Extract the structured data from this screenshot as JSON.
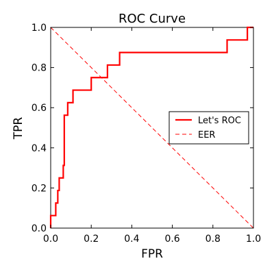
{
  "chart_data": {
    "type": "line",
    "title": "ROC Curve",
    "xlabel": "FPR",
    "ylabel": "TPR",
    "xlim": [
      0.0,
      1.0
    ],
    "ylim": [
      0.0,
      1.0
    ],
    "xticks": [
      "0.0",
      "0.2",
      "0.4",
      "0.6",
      "0.8",
      "1.0"
    ],
    "yticks": [
      "0.0",
      "0.2",
      "0.4",
      "0.6",
      "0.8",
      "1.0"
    ],
    "grid": false,
    "legend": {
      "position": "center-right"
    },
    "series": [
      {
        "name": "Let's ROC",
        "style": "solid",
        "color": "#ff0000",
        "points": [
          [
            0.0,
            0.0
          ],
          [
            0.0,
            0.0625
          ],
          [
            0.025,
            0.0625
          ],
          [
            0.025,
            0.125
          ],
          [
            0.035,
            0.125
          ],
          [
            0.035,
            0.1875
          ],
          [
            0.042,
            0.1875
          ],
          [
            0.042,
            0.25
          ],
          [
            0.062,
            0.25
          ],
          [
            0.062,
            0.3125
          ],
          [
            0.067,
            0.3125
          ],
          [
            0.067,
            0.5625
          ],
          [
            0.084,
            0.5625
          ],
          [
            0.084,
            0.625
          ],
          [
            0.11,
            0.625
          ],
          [
            0.11,
            0.6875
          ],
          [
            0.2,
            0.6875
          ],
          [
            0.2,
            0.75
          ],
          [
            0.28,
            0.75
          ],
          [
            0.28,
            0.8125
          ],
          [
            0.34,
            0.8125
          ],
          [
            0.34,
            0.875
          ],
          [
            0.87,
            0.875
          ],
          [
            0.87,
            0.9375
          ],
          [
            0.97,
            0.9375
          ],
          [
            0.97,
            1.0
          ],
          [
            1.0,
            1.0
          ]
        ]
      },
      {
        "name": "EER",
        "style": "dashed",
        "color": "#ff0000",
        "points": [
          [
            0.0,
            1.0
          ],
          [
            1.0,
            0.0
          ]
        ]
      }
    ]
  }
}
